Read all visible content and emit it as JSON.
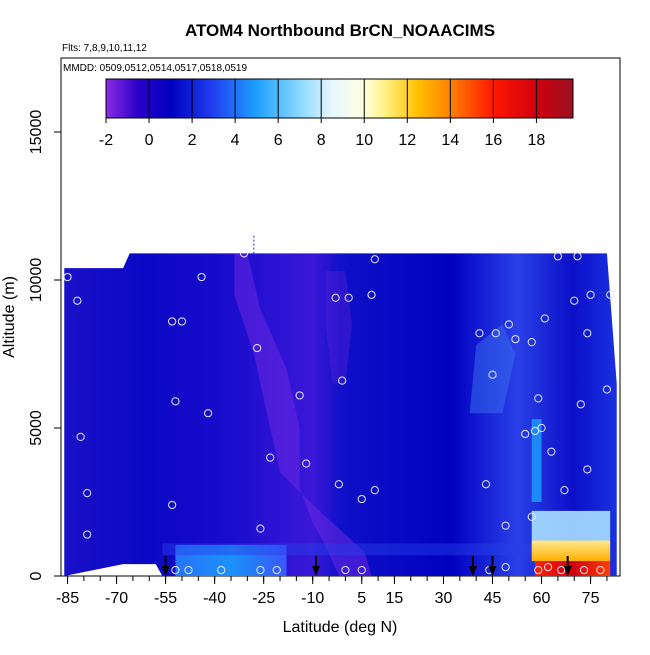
{
  "chart_data": {
    "type": "heatmap",
    "title": "ATOM4 Northbound BrCN_NOAACIMS",
    "subtitle_flights": "Flts: 7,8,9,10,11,12",
    "subtitle_dates": "MMDD: 0509,0512,0514,0517,0518,0519",
    "xlabel": "Latitude (deg N)",
    "ylabel": "Altitude (m)",
    "xlim": [
      -87,
      84
    ],
    "ylim": [
      0,
      17500
    ],
    "x_ticks": [
      -85,
      -70,
      -55,
      -40,
      -25,
      -10,
      5,
      15,
      30,
      45,
      60,
      75
    ],
    "x_minor_every": 5,
    "y_ticks": [
      0,
      5000,
      10000,
      15000
    ],
    "colorbar": {
      "range": [
        -2,
        19.7
      ],
      "tick_values": [
        -2,
        0,
        2,
        4,
        6,
        8,
        10,
        12,
        14,
        16,
        18
      ],
      "tick_labels": [
        "-2",
        "0",
        "2",
        "4",
        "6",
        "8",
        "10",
        "12",
        "14",
        "16",
        "18"
      ],
      "color_stops": [
        {
          "v": -2,
          "c": "#8a2be2"
        },
        {
          "v": -0.5,
          "c": "#2a00c8"
        },
        {
          "v": 1,
          "c": "#0000c0"
        },
        {
          "v": 3,
          "c": "#2040f0"
        },
        {
          "v": 5,
          "c": "#1ea0ff"
        },
        {
          "v": 7,
          "c": "#8ad8ff"
        },
        {
          "v": 8.5,
          "c": "#e8f6ff"
        },
        {
          "v": 10,
          "c": "#ffffe0"
        },
        {
          "v": 11,
          "c": "#fff080"
        },
        {
          "v": 12.5,
          "c": "#ffc000"
        },
        {
          "v": 14,
          "c": "#ff8000"
        },
        {
          "v": 16,
          "c": "#ff1800"
        },
        {
          "v": 18,
          "c": "#d00010"
        },
        {
          "v": 19.7,
          "c": "#9a1020"
        }
      ]
    },
    "field_value_approx": 1.0,
    "profiles": [
      {
        "lat": -86,
        "top": 10400,
        "bottom": 0
      },
      {
        "lat": -68,
        "top": 10400,
        "bottom": 400
      },
      {
        "lat": -66,
        "top": 10900,
        "bottom": 400
      },
      {
        "lat": -58,
        "top": 10900,
        "bottom": 400
      },
      {
        "lat": -56,
        "top": 10900,
        "bottom": 0
      },
      {
        "lat": 80,
        "top": 10900,
        "bottom": 0
      },
      {
        "lat": 83,
        "top": 6500,
        "bottom": 0
      }
    ],
    "sample_points": [
      {
        "lat": -85,
        "alt": 10100
      },
      {
        "lat": -82,
        "alt": 9300
      },
      {
        "lat": -81,
        "alt": 4700
      },
      {
        "lat": -79,
        "alt": 2800
      },
      {
        "lat": -79,
        "alt": 1400
      },
      {
        "lat": -53,
        "alt": 8600
      },
      {
        "lat": -50,
        "alt": 8600
      },
      {
        "lat": -52,
        "alt": 5900
      },
      {
        "lat": -53,
        "alt": 2400
      },
      {
        "lat": -52,
        "alt": 200
      },
      {
        "lat": -48,
        "alt": 200
      },
      {
        "lat": -44,
        "alt": 10100
      },
      {
        "lat": -42,
        "alt": 5500
      },
      {
        "lat": -38,
        "alt": 200
      },
      {
        "lat": -31,
        "alt": 10900
      },
      {
        "lat": -27,
        "alt": 7700
      },
      {
        "lat": -26,
        "alt": 1600
      },
      {
        "lat": -26,
        "alt": 200
      },
      {
        "lat": -23,
        "alt": 4000
      },
      {
        "lat": -21,
        "alt": 200
      },
      {
        "lat": -14,
        "alt": 6100
      },
      {
        "lat": -12,
        "alt": 3800
      },
      {
        "lat": -3,
        "alt": 9400
      },
      {
        "lat": -2,
        "alt": 3100
      },
      {
        "lat": -1,
        "alt": 6600
      },
      {
        "lat": 0,
        "alt": 200
      },
      {
        "lat": 1,
        "alt": 9400
      },
      {
        "lat": 5,
        "alt": 2600
      },
      {
        "lat": 5,
        "alt": 200
      },
      {
        "lat": 8,
        "alt": 9500
      },
      {
        "lat": 9,
        "alt": 10700
      },
      {
        "lat": 9,
        "alt": 2900
      },
      {
        "lat": 41,
        "alt": 8200
      },
      {
        "lat": 43,
        "alt": 3100
      },
      {
        "lat": 44,
        "alt": 200
      },
      {
        "lat": 45,
        "alt": 6800
      },
      {
        "lat": 46,
        "alt": 8200
      },
      {
        "lat": 49,
        "alt": 1700
      },
      {
        "lat": 49,
        "alt": 300
      },
      {
        "lat": 50,
        "alt": 8500
      },
      {
        "lat": 52,
        "alt": 8000
      },
      {
        "lat": 55,
        "alt": 4800
      },
      {
        "lat": 57,
        "alt": 7900
      },
      {
        "lat": 57,
        "alt": 2000
      },
      {
        "lat": 58,
        "alt": 4900
      },
      {
        "lat": 59,
        "alt": 6000
      },
      {
        "lat": 59,
        "alt": 200
      },
      {
        "lat": 60,
        "alt": 5000
      },
      {
        "lat": 61,
        "alt": 8700
      },
      {
        "lat": 62,
        "alt": 300
      },
      {
        "lat": 63,
        "alt": 4200
      },
      {
        "lat": 65,
        "alt": 10800
      },
      {
        "lat": 66,
        "alt": 200
      },
      {
        "lat": 67,
        "alt": 2900
      },
      {
        "lat": 70,
        "alt": 9300
      },
      {
        "lat": 71,
        "alt": 10800
      },
      {
        "lat": 72,
        "alt": 5800
      },
      {
        "lat": 73,
        "alt": 200
      },
      {
        "lat": 74,
        "alt": 3600
      },
      {
        "lat": 74,
        "alt": 8200
      },
      {
        "lat": 75,
        "alt": 9500
      },
      {
        "lat": 78,
        "alt": 200
      },
      {
        "lat": 80,
        "alt": 6300
      },
      {
        "lat": 81,
        "alt": 9500
      }
    ],
    "arrow_markers_lat": [
      -55,
      -9,
      39,
      45,
      68
    ]
  }
}
